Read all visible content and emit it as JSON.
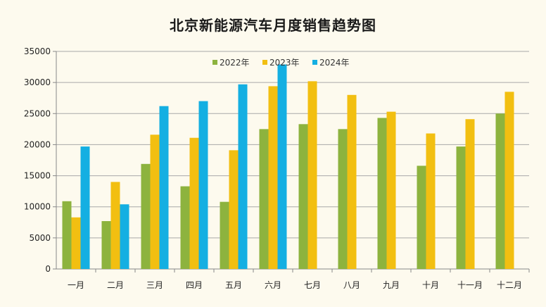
{
  "chart_data": {
    "type": "bar",
    "title": "北京新能源汽车月度销售趋势图",
    "xlabel": "",
    "ylabel": "",
    "ylim": [
      0,
      35000
    ],
    "yticks": [
      0,
      5000,
      10000,
      15000,
      20000,
      25000,
      30000,
      35000
    ],
    "grid": true,
    "legend_position": "top-center",
    "categories": [
      "一月",
      "二月",
      "三月",
      "四月",
      "五月",
      "六月",
      "七月",
      "八月",
      "九月",
      "十月",
      "十一月",
      "十二月"
    ],
    "series": [
      {
        "name": "2022年",
        "color": "#8db33e",
        "values": [
          10900,
          7700,
          16900,
          13300,
          10800,
          22500,
          23300,
          22500,
          24300,
          16600,
          19700,
          25000
        ]
      },
      {
        "name": "2023年",
        "color": "#f2bf11",
        "values": [
          8300,
          14000,
          21600,
          21100,
          19100,
          29400,
          30200,
          28000,
          25300,
          21800,
          24100,
          28500
        ]
      },
      {
        "name": "2024年",
        "color": "#14afe2",
        "values": [
          19700,
          10400,
          26200,
          27000,
          29700,
          32900,
          null,
          null,
          null,
          null,
          null,
          null
        ]
      }
    ]
  }
}
